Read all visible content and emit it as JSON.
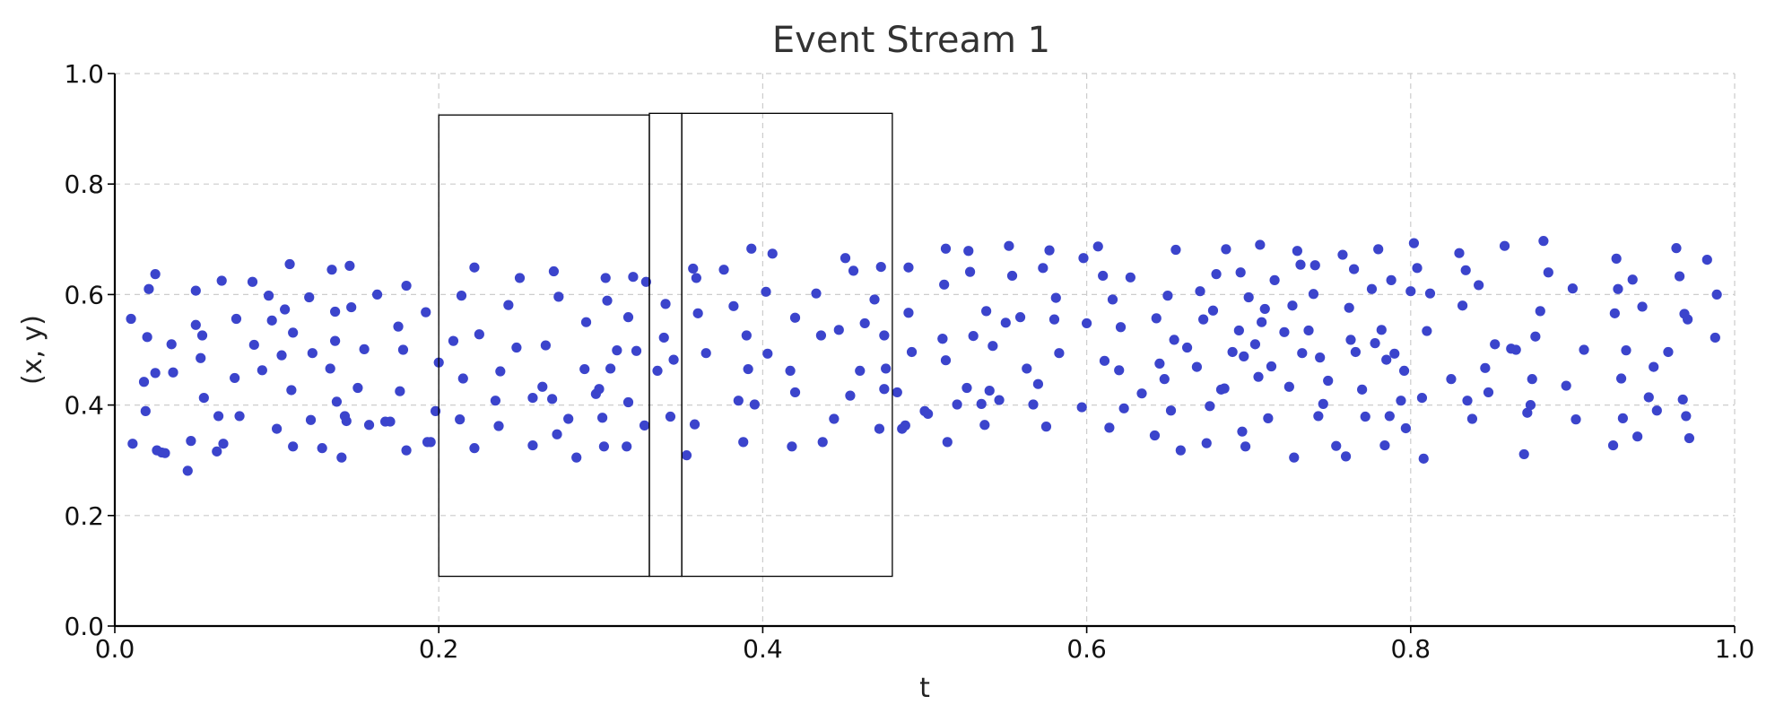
{
  "chart_data": {
    "type": "scatter",
    "title": "Event Stream 1",
    "xlabel": "t",
    "ylabel": "(x, y)",
    "xlim": [
      0,
      1
    ],
    "ylim": [
      0,
      1
    ],
    "xticks": [
      "0.0",
      "0.2",
      "0.4",
      "0.6",
      "0.8",
      "1.0"
    ],
    "yticks": [
      "0.0",
      "0.2",
      "0.4",
      "0.6",
      "0.8",
      "1.0"
    ],
    "grid": true,
    "point_color": "#3b44cc",
    "windows": [
      {
        "t0": 0.2,
        "t1": 0.33,
        "y0": 0.09,
        "y1": 0.925
      },
      {
        "t0": 0.33,
        "t1": 0.35,
        "y0": 0.09,
        "y1": 0.928
      },
      {
        "t0": 0.35,
        "t1": 0.48,
        "y0": 0.09,
        "y1": 0.928
      }
    ],
    "points": [
      [
        0.01,
        0.556
      ],
      [
        0.011,
        0.33
      ],
      [
        0.018,
        0.442
      ],
      [
        0.019,
        0.389
      ],
      [
        0.02,
        0.523
      ],
      [
        0.021,
        0.61
      ],
      [
        0.025,
        0.637
      ],
      [
        0.025,
        0.458
      ],
      [
        0.026,
        0.318
      ],
      [
        0.029,
        0.314
      ],
      [
        0.031,
        0.313
      ],
      [
        0.035,
        0.51
      ],
      [
        0.036,
        0.459
      ],
      [
        0.045,
        0.281
      ],
      [
        0.047,
        0.335
      ],
      [
        0.05,
        0.607
      ],
      [
        0.05,
        0.545
      ],
      [
        0.053,
        0.485
      ],
      [
        0.054,
        0.526
      ],
      [
        0.055,
        0.413
      ],
      [
        0.063,
        0.316
      ],
      [
        0.064,
        0.38
      ],
      [
        0.066,
        0.625
      ],
      [
        0.067,
        0.33
      ],
      [
        0.074,
        0.449
      ],
      [
        0.075,
        0.556
      ],
      [
        0.077,
        0.38
      ],
      [
        0.085,
        0.623
      ],
      [
        0.086,
        0.509
      ],
      [
        0.091,
        0.463
      ],
      [
        0.095,
        0.598
      ],
      [
        0.097,
        0.553
      ],
      [
        0.1,
        0.357
      ],
      [
        0.103,
        0.49
      ],
      [
        0.105,
        0.573
      ],
      [
        0.108,
        0.655
      ],
      [
        0.109,
        0.427
      ],
      [
        0.11,
        0.531
      ],
      [
        0.11,
        0.325
      ],
      [
        0.12,
        0.595
      ],
      [
        0.121,
        0.373
      ],
      [
        0.122,
        0.494
      ],
      [
        0.128,
        0.322
      ],
      [
        0.133,
        0.466
      ],
      [
        0.134,
        0.645
      ],
      [
        0.136,
        0.516
      ],
      [
        0.136,
        0.569
      ],
      [
        0.137,
        0.406
      ],
      [
        0.14,
        0.305
      ],
      [
        0.142,
        0.38
      ],
      [
        0.143,
        0.371
      ],
      [
        0.145,
        0.652
      ],
      [
        0.146,
        0.577
      ],
      [
        0.15,
        0.431
      ],
      [
        0.154,
        0.501
      ],
      [
        0.157,
        0.364
      ],
      [
        0.162,
        0.6
      ],
      [
        0.167,
        0.37
      ],
      [
        0.17,
        0.37
      ],
      [
        0.175,
        0.542
      ],
      [
        0.176,
        0.425
      ],
      [
        0.178,
        0.5
      ],
      [
        0.18,
        0.616
      ],
      [
        0.18,
        0.318
      ],
      [
        0.192,
        0.568
      ],
      [
        0.193,
        0.333
      ],
      [
        0.195,
        0.333
      ],
      [
        0.198,
        0.389
      ],
      [
        0.2,
        0.477
      ],
      [
        0.209,
        0.516
      ],
      [
        0.214,
        0.598
      ],
      [
        0.215,
        0.448
      ],
      [
        0.213,
        0.374
      ],
      [
        0.222,
        0.649
      ],
      [
        0.222,
        0.322
      ],
      [
        0.225,
        0.528
      ],
      [
        0.235,
        0.408
      ],
      [
        0.237,
        0.362
      ],
      [
        0.238,
        0.461
      ],
      [
        0.243,
        0.581
      ],
      [
        0.248,
        0.504
      ],
      [
        0.25,
        0.63
      ],
      [
        0.258,
        0.327
      ],
      [
        0.258,
        0.413
      ],
      [
        0.264,
        0.433
      ],
      [
        0.266,
        0.508
      ],
      [
        0.27,
        0.411
      ],
      [
        0.271,
        0.642
      ],
      [
        0.273,
        0.347
      ],
      [
        0.274,
        0.596
      ],
      [
        0.28,
        0.375
      ],
      [
        0.285,
        0.305
      ],
      [
        0.29,
        0.465
      ],
      [
        0.291,
        0.55
      ],
      [
        0.297,
        0.42
      ],
      [
        0.299,
        0.429
      ],
      [
        0.301,
        0.377
      ],
      [
        0.302,
        0.325
      ],
      [
        0.303,
        0.63
      ],
      [
        0.304,
        0.589
      ],
      [
        0.306,
        0.466
      ],
      [
        0.31,
        0.499
      ],
      [
        0.316,
        0.325
      ],
      [
        0.317,
        0.559
      ],
      [
        0.317,
        0.405
      ],
      [
        0.32,
        0.632
      ],
      [
        0.322,
        0.498
      ],
      [
        0.327,
        0.363
      ],
      [
        0.328,
        0.623
      ],
      [
        0.335,
        0.462
      ],
      [
        0.339,
        0.522
      ],
      [
        0.34,
        0.583
      ],
      [
        0.343,
        0.379
      ],
      [
        0.345,
        0.482
      ],
      [
        0.353,
        0.309
      ],
      [
        0.357,
        0.647
      ],
      [
        0.358,
        0.365
      ],
      [
        0.359,
        0.63
      ],
      [
        0.36,
        0.566
      ],
      [
        0.365,
        0.494
      ],
      [
        0.376,
        0.645
      ],
      [
        0.382,
        0.579
      ],
      [
        0.385,
        0.408
      ],
      [
        0.388,
        0.333
      ],
      [
        0.39,
        0.526
      ],
      [
        0.391,
        0.465
      ],
      [
        0.393,
        0.683
      ],
      [
        0.395,
        0.401
      ],
      [
        0.402,
        0.605
      ],
      [
        0.403,
        0.493
      ],
      [
        0.406,
        0.674
      ],
      [
        0.417,
        0.462
      ],
      [
        0.418,
        0.325
      ],
      [
        0.42,
        0.558
      ],
      [
        0.42,
        0.423
      ],
      [
        0.433,
        0.602
      ],
      [
        0.436,
        0.526
      ],
      [
        0.437,
        0.333
      ],
      [
        0.444,
        0.375
      ],
      [
        0.447,
        0.536
      ],
      [
        0.451,
        0.666
      ],
      [
        0.454,
        0.417
      ],
      [
        0.456,
        0.643
      ],
      [
        0.46,
        0.462
      ],
      [
        0.463,
        0.548
      ],
      [
        0.469,
        0.591
      ],
      [
        0.472,
        0.357
      ],
      [
        0.473,
        0.65
      ],
      [
        0.475,
        0.429
      ],
      [
        0.475,
        0.526
      ],
      [
        0.476,
        0.466
      ],
      [
        0.483,
        0.423
      ],
      [
        0.486,
        0.357
      ],
      [
        0.488,
        0.363
      ],
      [
        0.49,
        0.567
      ],
      [
        0.49,
        0.649
      ],
      [
        0.492,
        0.496
      ],
      [
        0.5,
        0.389
      ],
      [
        0.502,
        0.384
      ],
      [
        0.511,
        0.52
      ],
      [
        0.511,
        0.52
      ],
      [
        0.512,
        0.618
      ],
      [
        0.513,
        0.481
      ],
      [
        0.513,
        0.683
      ],
      [
        0.514,
        0.333
      ],
      [
        0.52,
        0.401
      ],
      [
        0.526,
        0.431
      ],
      [
        0.527,
        0.679
      ],
      [
        0.528,
        0.641
      ],
      [
        0.53,
        0.525
      ],
      [
        0.535,
        0.402
      ],
      [
        0.537,
        0.364
      ],
      [
        0.538,
        0.57
      ],
      [
        0.54,
        0.426
      ],
      [
        0.542,
        0.507
      ],
      [
        0.546,
        0.409
      ],
      [
        0.55,
        0.549
      ],
      [
        0.552,
        0.688
      ],
      [
        0.554,
        0.634
      ],
      [
        0.559,
        0.559
      ],
      [
        0.563,
        0.466
      ],
      [
        0.567,
        0.401
      ],
      [
        0.57,
        0.438
      ],
      [
        0.573,
        0.648
      ],
      [
        0.575,
        0.361
      ],
      [
        0.577,
        0.68
      ],
      [
        0.58,
        0.555
      ],
      [
        0.581,
        0.594
      ],
      [
        0.583,
        0.494
      ],
      [
        0.597,
        0.396
      ],
      [
        0.598,
        0.666
      ],
      [
        0.6,
        0.548
      ],
      [
        0.607,
        0.687
      ],
      [
        0.61,
        0.634
      ],
      [
        0.611,
        0.48
      ],
      [
        0.614,
        0.359
      ],
      [
        0.616,
        0.591
      ],
      [
        0.62,
        0.463
      ],
      [
        0.621,
        0.541
      ],
      [
        0.623,
        0.394
      ],
      [
        0.627,
        0.631
      ],
      [
        0.634,
        0.421
      ],
      [
        0.642,
        0.345
      ],
      [
        0.643,
        0.557
      ],
      [
        0.645,
        0.475
      ],
      [
        0.648,
        0.447
      ],
      [
        0.65,
        0.598
      ],
      [
        0.652,
        0.39
      ],
      [
        0.654,
        0.518
      ],
      [
        0.655,
        0.681
      ],
      [
        0.658,
        0.318
      ],
      [
        0.662,
        0.504
      ],
      [
        0.668,
        0.469
      ],
      [
        0.67,
        0.606
      ],
      [
        0.672,
        0.555
      ],
      [
        0.674,
        0.331
      ],
      [
        0.676,
        0.398
      ],
      [
        0.678,
        0.571
      ],
      [
        0.68,
        0.637
      ],
      [
        0.683,
        0.428
      ],
      [
        0.685,
        0.43
      ],
      [
        0.686,
        0.682
      ],
      [
        0.69,
        0.496
      ],
      [
        0.694,
        0.535
      ],
      [
        0.695,
        0.64
      ],
      [
        0.696,
        0.352
      ],
      [
        0.697,
        0.488
      ],
      [
        0.698,
        0.325
      ],
      [
        0.7,
        0.595
      ],
      [
        0.704,
        0.51
      ],
      [
        0.706,
        0.451
      ],
      [
        0.707,
        0.69
      ],
      [
        0.708,
        0.55
      ],
      [
        0.71,
        0.574
      ],
      [
        0.712,
        0.376
      ],
      [
        0.714,
        0.47
      ],
      [
        0.716,
        0.626
      ],
      [
        0.722,
        0.532
      ],
      [
        0.725,
        0.433
      ],
      [
        0.727,
        0.58
      ],
      [
        0.728,
        0.305
      ],
      [
        0.73,
        0.679
      ],
      [
        0.732,
        0.654
      ],
      [
        0.733,
        0.494
      ],
      [
        0.737,
        0.535
      ],
      [
        0.74,
        0.601
      ],
      [
        0.741,
        0.653
      ],
      [
        0.743,
        0.38
      ],
      [
        0.744,
        0.486
      ],
      [
        0.746,
        0.402
      ],
      [
        0.749,
        0.444
      ],
      [
        0.754,
        0.326
      ],
      [
        0.758,
        0.672
      ],
      [
        0.76,
        0.307
      ],
      [
        0.762,
        0.576
      ],
      [
        0.763,
        0.518
      ],
      [
        0.765,
        0.646
      ],
      [
        0.766,
        0.496
      ],
      [
        0.77,
        0.428
      ],
      [
        0.772,
        0.379
      ],
      [
        0.776,
        0.61
      ],
      [
        0.778,
        0.512
      ],
      [
        0.78,
        0.682
      ],
      [
        0.782,
        0.536
      ],
      [
        0.784,
        0.327
      ],
      [
        0.785,
        0.482
      ],
      [
        0.787,
        0.38
      ],
      [
        0.788,
        0.626
      ],
      [
        0.79,
        0.493
      ],
      [
        0.794,
        0.408
      ],
      [
        0.796,
        0.462
      ],
      [
        0.797,
        0.358
      ],
      [
        0.8,
        0.606
      ],
      [
        0.802,
        0.693
      ],
      [
        0.804,
        0.648
      ],
      [
        0.807,
        0.413
      ],
      [
        0.808,
        0.303
      ],
      [
        0.81,
        0.534
      ],
      [
        0.812,
        0.602
      ],
      [
        0.825,
        0.447
      ],
      [
        0.83,
        0.675
      ],
      [
        0.832,
        0.58
      ],
      [
        0.834,
        0.644
      ],
      [
        0.835,
        0.408
      ],
      [
        0.838,
        0.375
      ],
      [
        0.842,
        0.617
      ],
      [
        0.846,
        0.467
      ],
      [
        0.848,
        0.423
      ],
      [
        0.852,
        0.51
      ],
      [
        0.858,
        0.688
      ],
      [
        0.862,
        0.502
      ],
      [
        0.865,
        0.5
      ],
      [
        0.87,
        0.311
      ],
      [
        0.872,
        0.386
      ],
      [
        0.874,
        0.4
      ],
      [
        0.875,
        0.447
      ],
      [
        0.877,
        0.524
      ],
      [
        0.88,
        0.57
      ],
      [
        0.882,
        0.697
      ],
      [
        0.885,
        0.64
      ],
      [
        0.896,
        0.435
      ],
      [
        0.9,
        0.611
      ],
      [
        0.902,
        0.374
      ],
      [
        0.907,
        0.5
      ],
      [
        0.925,
        0.327
      ],
      [
        0.926,
        0.566
      ],
      [
        0.927,
        0.665
      ],
      [
        0.928,
        0.61
      ],
      [
        0.93,
        0.448
      ],
      [
        0.931,
        0.376
      ],
      [
        0.933,
        0.499
      ],
      [
        0.937,
        0.627
      ],
      [
        0.94,
        0.343
      ],
      [
        0.943,
        0.578
      ],
      [
        0.947,
        0.414
      ],
      [
        0.95,
        0.469
      ],
      [
        0.952,
        0.39
      ],
      [
        0.959,
        0.496
      ],
      [
        0.964,
        0.684
      ],
      [
        0.966,
        0.633
      ],
      [
        0.968,
        0.41
      ],
      [
        0.969,
        0.565
      ],
      [
        0.97,
        0.38
      ],
      [
        0.971,
        0.555
      ],
      [
        0.972,
        0.34
      ],
      [
        0.983,
        0.663
      ],
      [
        0.988,
        0.522
      ],
      [
        0.989,
        0.6
      ]
    ]
  }
}
